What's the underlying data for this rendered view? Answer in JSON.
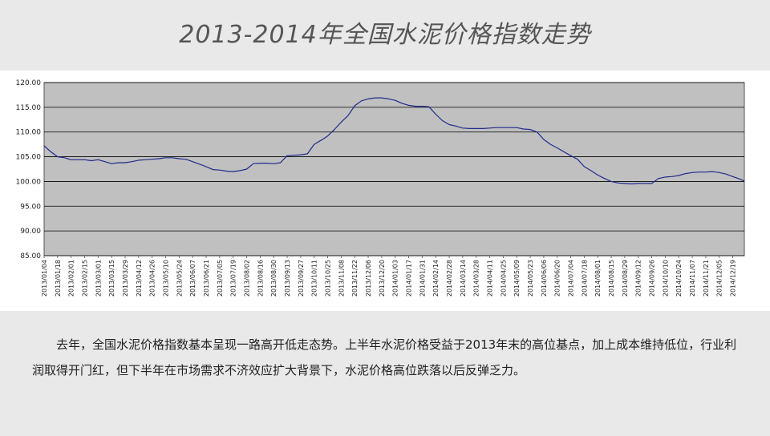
{
  "slide": {
    "title": "2013-2014年全国水泥价格指数走势",
    "caption": "去年，全国水泥价格指数基本呈现一路高开低走态势。上半年水泥价格受益于2013年末的高位基点，加上成本维持低位，行业利润取得开门红，但下半年在市场需求不济效应扩大背景下，水泥价格高位跌落以后反弹乏力。"
  },
  "colors": {
    "plot_background": "#c0c0c0",
    "line": "#1f2a8c",
    "grid": "#000000"
  },
  "chart_data": {
    "type": "line",
    "title": "",
    "xlabel": "",
    "ylabel": "",
    "ylim": [
      85,
      120
    ],
    "yticks": [
      85,
      90,
      95,
      100,
      105,
      110,
      115,
      120
    ],
    "ytick_labels": [
      "85.00",
      "90.00",
      "95.00",
      "100.00",
      "105.00",
      "110.00",
      "115.00",
      "120.00"
    ],
    "grid": true,
    "legend": "none",
    "xticks": [
      "2013/01/04",
      "2013/01/18",
      "2013/02/01",
      "2013/02/15",
      "2013/03/01",
      "2013/03/15",
      "2013/03/29",
      "2013/04/12",
      "2013/04/26",
      "2013/05/10",
      "2013/05/24",
      "2013/06/07",
      "2013/06/21",
      "2013/07/05",
      "2013/07/19",
      "2013/08/02",
      "2013/08/16",
      "2013/08/30",
      "2013/09/13",
      "2013/09/27",
      "2013/10/11",
      "2013/10/25",
      "2013/11/08",
      "2013/11/22",
      "2013/12/06",
      "2013/12/20",
      "2014/01/03",
      "2014/01/17",
      "2014/01/31",
      "2014/02/14",
      "2014/02/28",
      "2014/03/14",
      "2014/03/28",
      "2014/04/11",
      "2014/04/25",
      "2014/05/09",
      "2014/05/23",
      "2014/06/06",
      "2014/06/20",
      "2014/07/04",
      "2014/07/18",
      "2014/08/01",
      "2014/08/15",
      "2014/08/29",
      "2014/09/12",
      "2014/09/26",
      "2014/10/10",
      "2014/10/24",
      "2014/11/07",
      "2014/11/21",
      "2014/12/05",
      "2014/12/19"
    ],
    "series": [
      {
        "x": [
          "2013/01/04",
          "2013/01/11",
          "2013/01/18",
          "2013/01/25",
          "2013/02/01",
          "2013/02/15",
          "2013/02/22",
          "2013/03/01",
          "2013/03/08",
          "2013/03/15",
          "2013/03/22",
          "2013/03/29",
          "2013/04/05",
          "2013/04/12",
          "2013/04/19",
          "2013/04/26",
          "2013/05/03",
          "2013/05/10",
          "2013/05/17",
          "2013/05/24",
          "2013/05/31",
          "2013/06/07",
          "2013/06/14",
          "2013/06/21",
          "2013/06/28",
          "2013/07/05",
          "2013/07/12",
          "2013/07/19",
          "2013/07/26",
          "2013/08/02",
          "2013/08/09",
          "2013/08/16",
          "2013/08/23",
          "2013/08/30",
          "2013/09/06",
          "2013/09/13",
          "2013/09/20",
          "2013/09/27",
          "2013/10/04",
          "2013/10/11",
          "2013/10/18",
          "2013/10/25",
          "2013/11/01",
          "2013/11/08",
          "2013/11/15",
          "2013/11/22",
          "2013/11/29",
          "2013/12/06",
          "2013/12/13",
          "2013/12/20",
          "2013/12/27",
          "2014/01/03",
          "2014/01/10",
          "2014/01/17",
          "2014/01/24",
          "2014/01/31",
          "2014/02/07",
          "2014/02/14",
          "2014/02/21",
          "2014/02/28",
          "2014/03/07",
          "2014/03/14",
          "2014/03/21",
          "2014/03/28",
          "2014/04/04",
          "2014/04/11",
          "2014/04/18",
          "2014/04/25",
          "2014/05/02",
          "2014/05/09",
          "2014/05/16",
          "2014/05/23",
          "2014/05/30",
          "2014/06/06",
          "2014/06/13",
          "2014/06/20",
          "2014/06/27",
          "2014/07/04",
          "2014/07/11",
          "2014/07/18",
          "2014/07/25",
          "2014/08/01",
          "2014/08/08",
          "2014/08/15",
          "2014/08/22",
          "2014/08/29",
          "2014/09/05",
          "2014/09/12",
          "2014/09/19",
          "2014/09/26",
          "2014/10/03",
          "2014/10/10",
          "2014/10/17",
          "2014/10/24",
          "2014/10/31",
          "2014/11/07",
          "2014/11/14",
          "2014/11/21",
          "2014/11/28",
          "2014/12/05",
          "2014/12/12",
          "2014/12/19",
          "2014/12/26",
          "2014/12/31"
        ],
        "values": [
          107.2,
          106.0,
          105.0,
          104.8,
          104.4,
          104.4,
          104.2,
          104.4,
          104.0,
          103.6,
          103.8,
          103.8,
          104.0,
          104.3,
          104.4,
          104.5,
          104.6,
          104.8,
          104.8,
          104.6,
          104.5,
          104.0,
          103.5,
          103.0,
          102.4,
          102.3,
          102.1,
          102.0,
          102.2,
          102.5,
          103.6,
          103.7,
          103.7,
          103.6,
          103.8,
          105.2,
          105.3,
          105.4,
          105.6,
          107.5,
          108.3,
          109.2,
          110.5,
          112.0,
          113.3,
          115.3,
          116.3,
          116.7,
          116.9,
          116.9,
          116.7,
          116.4,
          115.8,
          115.4,
          115.2,
          115.2,
          115.1,
          113.6,
          112.3,
          111.5,
          111.2,
          110.8,
          110.7,
          110.7,
          110.7,
          110.8,
          110.9,
          110.9,
          110.9,
          110.9,
          110.6,
          110.5,
          110.0,
          108.5,
          107.5,
          106.8,
          106.0,
          105.2,
          104.5,
          103.0,
          102.2,
          101.3,
          100.6,
          100.0,
          99.7,
          99.6,
          99.5,
          99.6,
          99.6,
          99.6,
          100.6,
          100.9,
          101.0,
          101.2,
          101.6,
          101.8,
          101.9,
          101.9,
          102.0,
          101.8,
          101.5,
          101.0,
          100.5,
          100.1
        ]
      }
    ]
  }
}
